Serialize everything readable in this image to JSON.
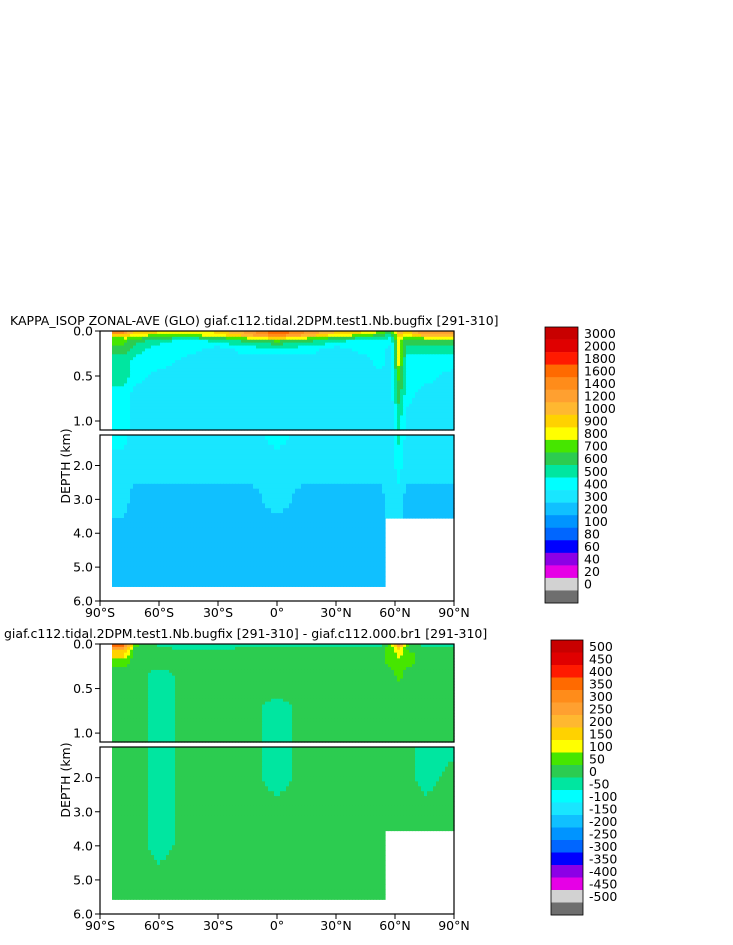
{
  "chart_data": [
    {
      "type": "heatmap",
      "title": "KAPPA_ISOP ZONAL-AVE (GLO) giaf.c112.tidal.2DPM.test1.Nb.bugfix [291-310]",
      "xlabel": "",
      "ylabel": "DEPTH (km)",
      "x_ticks": [
        "90°S",
        "60°S",
        "30°S",
        "0°",
        "30°N",
        "60°N",
        "90°N"
      ],
      "y_ticks_upper": [
        "0.0",
        "0.5",
        "1.0"
      ],
      "y_ticks_lower": [
        "2.0",
        "3.0",
        "4.0",
        "5.0",
        "6.0"
      ],
      "xlim": [
        -90,
        90
      ],
      "ylim": [
        6.0,
        0.0
      ],
      "colorbar": {
        "levels": [
          "3000",
          "2000",
          "1800",
          "1600",
          "1400",
          "1200",
          "1000",
          "900",
          "800",
          "700",
          "600",
          "500",
          "400",
          "300",
          "200",
          "100",
          "80",
          "60",
          "40",
          "20",
          "0"
        ],
        "colors": [
          "#c80000",
          "#e00000",
          "#ff1a00",
          "#ff6a00",
          "#ff8c1a",
          "#ffa030",
          "#ffb830",
          "#ffd200",
          "#ffff00",
          "#46e600",
          "#2ccc50",
          "#00e6a0",
          "#00ffff",
          "#19e6ff",
          "#10c0ff",
          "#0094ff",
          "#0066ff",
          "#0000ff",
          "#8c00e6",
          "#e600e6",
          "#d2d2d2",
          "#6e6e6e"
        ]
      },
      "field": {
        "lat": [
          -90,
          -78,
          -72,
          -60,
          -45,
          -30,
          -15,
          0,
          15,
          30,
          45,
          52,
          58,
          62,
          66,
          75,
          90
        ],
        "upper_depth_km": [
          0.0,
          0.05,
          0.1,
          0.2,
          0.35,
          0.5,
          0.7,
          1.0
        ],
        "upper_level_index": [
          [
            null,
            4,
            6,
            7,
            8,
            7,
            5,
            2,
            4,
            6,
            7,
            8,
            10,
            5,
            7,
            4,
            4
          ],
          [
            null,
            7,
            8,
            9,
            9,
            8,
            6,
            4,
            6,
            8,
            9,
            10,
            11,
            7,
            8,
            6,
            6
          ],
          [
            null,
            9,
            10,
            11,
            12,
            11,
            10,
            9,
            10,
            11,
            12,
            12,
            12,
            8,
            10,
            10,
            10
          ],
          [
            null,
            10,
            11,
            12,
            12,
            13,
            12,
            12,
            12,
            13,
            12,
            12,
            13,
            8,
            11,
            11,
            11
          ],
          [
            null,
            11,
            12,
            12,
            13,
            13,
            13,
            13,
            13,
            13,
            13,
            12,
            13,
            8,
            12,
            12,
            12
          ],
          [
            null,
            11,
            12,
            13,
            13,
            13,
            13,
            13,
            13,
            13,
            13,
            13,
            13,
            9,
            12,
            12,
            13
          ],
          [
            null,
            12,
            13,
            13,
            13,
            13,
            13,
            13,
            13,
            13,
            13,
            13,
            13,
            10,
            12,
            13,
            13
          ],
          [
            null,
            12,
            13,
            13,
            13,
            13,
            13,
            13,
            13,
            13,
            13,
            13,
            13,
            11,
            13,
            13,
            13
          ]
        ],
        "lower_depth_km": [
          1.0,
          2.0,
          3.0,
          4.0,
          5.0,
          6.0
        ],
        "lower_level_index": [
          [
            null,
            12,
            13,
            13,
            13,
            13,
            13,
            12,
            13,
            13,
            13,
            13,
            13,
            11,
            13,
            13,
            13
          ],
          [
            null,
            13,
            13,
            13,
            13,
            13,
            13,
            13,
            13,
            13,
            13,
            13,
            13,
            12,
            13,
            13,
            13
          ],
          [
            null,
            13,
            14,
            14,
            14,
            14,
            14,
            13,
            14,
            14,
            14,
            14,
            13,
            13,
            14,
            14,
            14
          ],
          [
            null,
            14,
            14,
            14,
            14,
            14,
            14,
            14,
            14,
            14,
            14,
            14,
            null,
            null,
            null,
            null,
            null
          ],
          [
            null,
            14,
            14,
            14,
            14,
            14,
            14,
            14,
            14,
            14,
            14,
            14,
            null,
            null,
            null,
            null,
            null
          ],
          [
            null,
            null,
            null,
            null,
            null,
            null,
            null,
            null,
            null,
            null,
            null,
            null,
            null,
            null,
            null,
            null,
            null
          ]
        ]
      }
    },
    {
      "type": "heatmap",
      "title": "giaf.c112.tidal.2DPM.test1.Nb.bugfix [291-310] - giaf.c112.000.br1 [291-310]",
      "xlabel": "",
      "ylabel": "DEPTH (km)",
      "x_ticks": [
        "90°S",
        "60°S",
        "30°S",
        "0°",
        "30°N",
        "60°N",
        "90°N"
      ],
      "y_ticks_upper": [
        "0.0",
        "0.5",
        "1.0"
      ],
      "y_ticks_lower": [
        "2.0",
        "3.0",
        "4.0",
        "5.0",
        "6.0"
      ],
      "xlim": [
        -90,
        90
      ],
      "ylim": [
        6.0,
        0.0
      ],
      "colorbar": {
        "levels": [
          "500",
          "450",
          "400",
          "350",
          "300",
          "250",
          "200",
          "150",
          "100",
          "50",
          "0",
          "-50",
          "-100",
          "-150",
          "-200",
          "-250",
          "-300",
          "-350",
          "-400",
          "-450",
          "-500"
        ],
        "colors": [
          "#c80000",
          "#e00000",
          "#ff1a00",
          "#ff6a00",
          "#ff8c1a",
          "#ffa030",
          "#ffb830",
          "#ffd200",
          "#ffff00",
          "#46e600",
          "#2ccc50",
          "#00e6a0",
          "#00ffff",
          "#19e6ff",
          "#10c0ff",
          "#0094ff",
          "#0066ff",
          "#0000ff",
          "#8c00e6",
          "#e600e6",
          "#d2d2d2",
          "#6e6e6e"
        ]
      },
      "field": {
        "lat": [
          -90,
          -78,
          -72,
          -60,
          -45,
          -30,
          -15,
          0,
          15,
          30,
          45,
          52,
          58,
          62,
          66,
          75,
          90
        ],
        "upper_depth_km": [
          0.0,
          0.05,
          0.1,
          0.2,
          0.35,
          0.5,
          0.7,
          1.0
        ],
        "upper_level_index": [
          [
            null,
            3,
            9,
            11,
            11,
            11,
            12,
            11,
            12,
            11,
            11,
            11,
            9,
            4,
            9,
            11,
            11
          ],
          [
            null,
            5,
            10,
            10,
            11,
            11,
            10,
            10,
            10,
            10,
            10,
            10,
            9,
            7,
            10,
            10,
            10
          ],
          [
            null,
            7,
            10,
            10,
            10,
            10,
            10,
            10,
            10,
            10,
            10,
            10,
            9,
            8,
            9,
            10,
            10
          ],
          [
            null,
            9,
            10,
            10,
            10,
            10,
            10,
            10,
            10,
            10,
            10,
            10,
            9,
            9,
            9,
            10,
            10
          ],
          [
            null,
            10,
            10,
            11,
            10,
            10,
            10,
            10,
            10,
            10,
            10,
            10,
            10,
            9,
            10,
            10,
            10
          ],
          [
            null,
            10,
            10,
            11,
            10,
            10,
            10,
            10,
            10,
            10,
            10,
            10,
            10,
            10,
            10,
            10,
            10
          ],
          [
            null,
            10,
            10,
            11,
            10,
            10,
            10,
            11,
            10,
            10,
            10,
            10,
            10,
            10,
            10,
            10,
            10
          ],
          [
            null,
            10,
            10,
            11,
            10,
            10,
            10,
            11,
            10,
            10,
            10,
            10,
            10,
            10,
            10,
            10,
            10
          ]
        ],
        "lower_depth_km": [
          1.0,
          2.0,
          3.0,
          4.0,
          5.0,
          6.0
        ],
        "lower_level_index": [
          [
            null,
            10,
            10,
            11,
            10,
            10,
            10,
            11,
            10,
            10,
            10,
            10,
            10,
            10,
            10,
            11,
            11
          ],
          [
            null,
            10,
            10,
            11,
            10,
            10,
            10,
            11,
            10,
            10,
            10,
            10,
            10,
            10,
            10,
            11,
            10
          ],
          [
            null,
            10,
            10,
            11,
            10,
            10,
            10,
            10,
            10,
            10,
            10,
            10,
            10,
            10,
            10,
            10,
            10
          ],
          [
            null,
            10,
            10,
            11,
            10,
            10,
            10,
            10,
            10,
            10,
            10,
            10,
            null,
            null,
            null,
            null,
            null
          ],
          [
            null,
            10,
            10,
            10,
            10,
            10,
            10,
            10,
            10,
            10,
            10,
            10,
            null,
            null,
            null,
            null,
            null
          ],
          [
            null,
            null,
            null,
            null,
            null,
            null,
            null,
            null,
            null,
            null,
            null,
            null,
            null,
            null,
            null,
            null,
            null
          ]
        ]
      }
    }
  ]
}
